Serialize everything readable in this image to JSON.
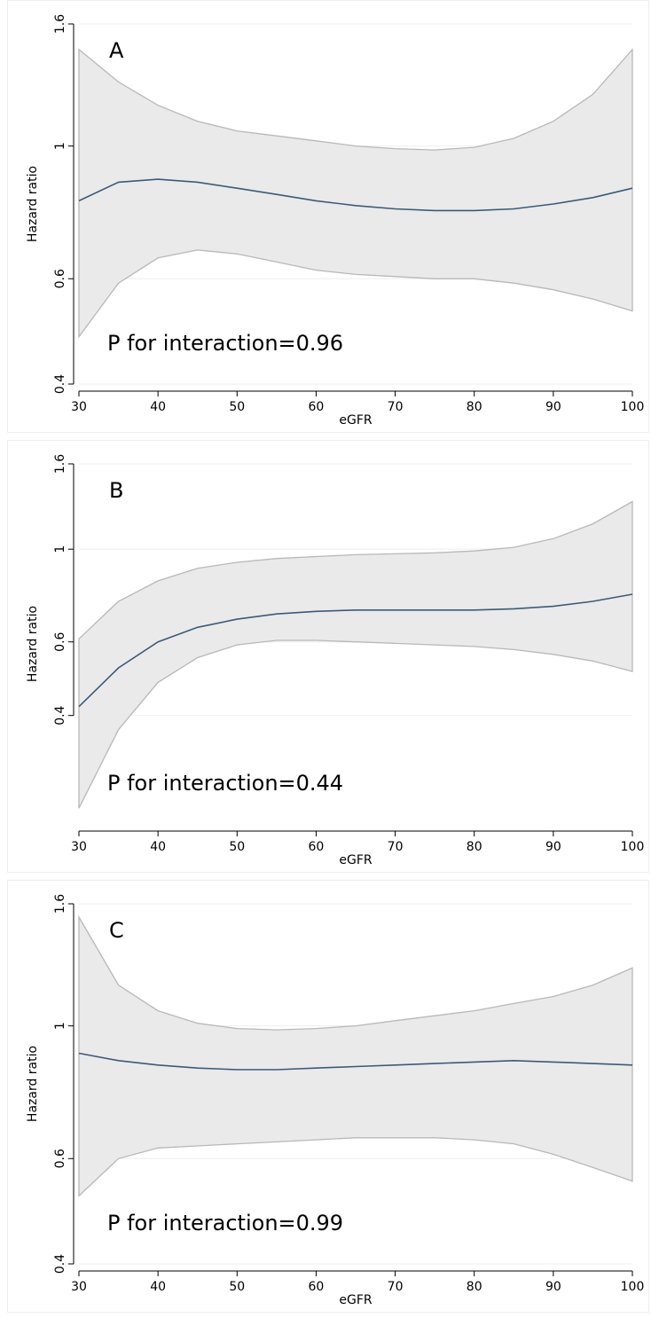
{
  "chart_data": [
    {
      "type": "line",
      "panel_label": "A",
      "annotation": "P for interaction=0.96",
      "xlabel": "eGFR",
      "ylabel": "Hazard ratio",
      "xlim": [
        30,
        100
      ],
      "ylim": [
        0.4,
        1.6
      ],
      "y_scale": "log",
      "xticks": [
        30,
        40,
        50,
        60,
        70,
        80,
        90,
        100
      ],
      "yticks": [
        0.4,
        0.6,
        1,
        1.6
      ],
      "ytick_labels": [
        "0.4",
        "0.6",
        "1",
        "1.6"
      ],
      "grid": "horizontal",
      "x": [
        30,
        35,
        40,
        45,
        50,
        55,
        60,
        65,
        70,
        75,
        80,
        85,
        90,
        95,
        100
      ],
      "estimate": [
        0.81,
        0.87,
        0.88,
        0.87,
        0.85,
        0.83,
        0.81,
        0.795,
        0.785,
        0.78,
        0.78,
        0.785,
        0.8,
        0.82,
        0.85
      ],
      "lower": [
        0.48,
        0.59,
        0.65,
        0.67,
        0.66,
        0.64,
        0.62,
        0.61,
        0.605,
        0.6,
        0.6,
        0.59,
        0.575,
        0.555,
        0.53
      ],
      "upper": [
        1.45,
        1.28,
        1.17,
        1.1,
        1.06,
        1.04,
        1.02,
        1.0,
        0.99,
        0.985,
        0.995,
        1.03,
        1.1,
        1.22,
        1.45
      ]
    },
    {
      "type": "line",
      "panel_label": "B",
      "annotation": "P for interaction=0.44",
      "xlabel": "eGFR",
      "ylabel": "Hazard ratio",
      "xlim": [
        30,
        100
      ],
      "ylim": [
        0.22,
        1.6
      ],
      "y_scale": "log",
      "xticks": [
        30,
        40,
        50,
        60,
        70,
        80,
        90,
        100
      ],
      "yticks": [
        0.4,
        0.6,
        1,
        1.6
      ],
      "ytick_labels": [
        "0.4",
        "0.6",
        "1",
        "1.6"
      ],
      "grid": "horizontal",
      "x": [
        30,
        35,
        40,
        45,
        50,
        55,
        60,
        65,
        70,
        75,
        80,
        85,
        90,
        95,
        100
      ],
      "estimate": [
        0.42,
        0.52,
        0.6,
        0.65,
        0.68,
        0.7,
        0.71,
        0.715,
        0.715,
        0.715,
        0.715,
        0.72,
        0.73,
        0.75,
        0.78
      ],
      "lower": [
        0.24,
        0.37,
        0.48,
        0.55,
        0.59,
        0.605,
        0.605,
        0.6,
        0.595,
        0.59,
        0.585,
        0.575,
        0.56,
        0.54,
        0.51
      ],
      "upper": [
        0.61,
        0.75,
        0.84,
        0.9,
        0.93,
        0.95,
        0.96,
        0.97,
        0.975,
        0.98,
        0.99,
        1.01,
        1.06,
        1.15,
        1.3
      ]
    },
    {
      "type": "line",
      "panel_label": "C",
      "annotation": "P for interaction=0.99",
      "xlabel": "eGFR",
      "ylabel": "Hazard ratio",
      "xlim": [
        30,
        100
      ],
      "ylim": [
        0.4,
        1.6
      ],
      "y_scale": "log",
      "xticks": [
        30,
        40,
        50,
        60,
        70,
        80,
        90,
        100
      ],
      "yticks": [
        0.4,
        0.6,
        1,
        1.6
      ],
      "ytick_labels": [
        "0.4",
        "0.6",
        "1",
        "1.6"
      ],
      "grid": "horizontal",
      "x": [
        30,
        35,
        40,
        45,
        50,
        55,
        60,
        65,
        70,
        75,
        80,
        85,
        90,
        95,
        100
      ],
      "estimate": [
        0.9,
        0.875,
        0.86,
        0.85,
        0.845,
        0.845,
        0.85,
        0.855,
        0.86,
        0.865,
        0.87,
        0.875,
        0.87,
        0.865,
        0.86
      ],
      "lower": [
        0.52,
        0.6,
        0.625,
        0.63,
        0.635,
        0.64,
        0.645,
        0.65,
        0.65,
        0.65,
        0.645,
        0.635,
        0.61,
        0.58,
        0.55
      ],
      "upper": [
        1.52,
        1.17,
        1.06,
        1.01,
        0.99,
        0.985,
        0.99,
        1.0,
        1.02,
        1.04,
        1.06,
        1.09,
        1.12,
        1.17,
        1.25
      ]
    }
  ],
  "colors": {
    "line": "#3b5b78",
    "band_fill": "#eaeaea",
    "band_edge": "#b8b8b8",
    "grid": "#eeeeee",
    "axis": "#000000"
  }
}
